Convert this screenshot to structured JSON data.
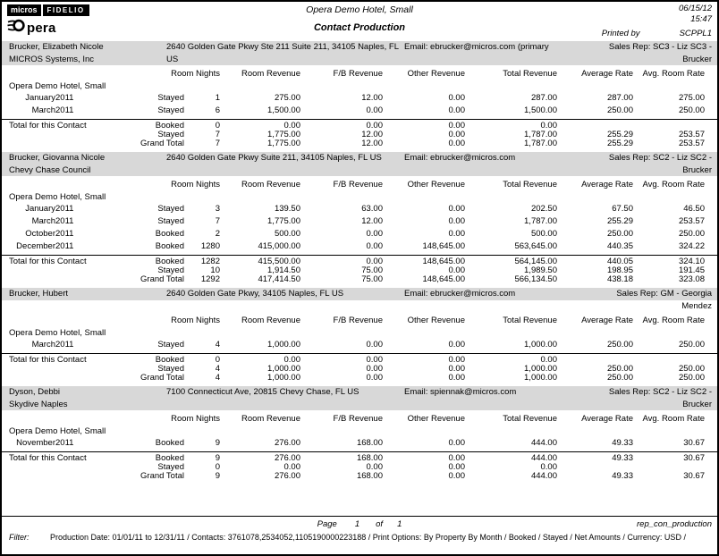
{
  "colors": {
    "band": "#d8d8d8",
    "text": "#000000",
    "page_bg": "#ffffff"
  },
  "header": {
    "logo_micros": "micros",
    "logo_fidelio": "FIDELIO",
    "logo_opera_text": "pera",
    "hotel_title": "Opera Demo Hotel, Small",
    "report_title": "Contact Production",
    "date": "06/15/12",
    "time": "15:47",
    "printed_by_label": "Printed by",
    "printed_by_value": "SCPPL1"
  },
  "table": {
    "columns": [
      "Room Nights",
      "Room Revenue",
      "F/B Revenue",
      "Other Revenue",
      "Total Revenue",
      "Average Rate",
      "Avg. Room Rate"
    ],
    "property_label": "Opera Demo Hotel, Small",
    "total_label": "Total for this Contact"
  },
  "contacts": [
    {
      "name": "Brucker, Elizabeth Nicole",
      "address": "2640 Golden Gate Pkwy Ste 211 Suite 211, 34105 Naples, FL US",
      "email": "Email: ebrucker@micros.com (primary",
      "sales_rep": "Sales Rep: SC3 - Liz SC3 - Brucker",
      "company": "MICROS Systems, Inc",
      "rows": [
        {
          "month": "January",
          "year": "2011",
          "status": "Stayed",
          "nights": "1",
          "room": "275.00",
          "fb": "12.00",
          "other": "0.00",
          "total": "287.00",
          "avg_rate": "287.00",
          "avg_room_rate": "275.00"
        },
        {
          "month": "March",
          "year": "2011",
          "status": "Stayed",
          "nights": "6",
          "room": "1,500.00",
          "fb": "0.00",
          "other": "0.00",
          "total": "1,500.00",
          "avg_rate": "250.00",
          "avg_room_rate": "250.00"
        }
      ],
      "totals": [
        {
          "status": "Booked",
          "nights": "0",
          "room": "0.00",
          "fb": "0.00",
          "other": "0.00",
          "total": "0.00",
          "avg_rate": "",
          "avg_room_rate": ""
        },
        {
          "status": "Stayed",
          "nights": "7",
          "room": "1,775.00",
          "fb": "12.00",
          "other": "0.00",
          "total": "1,787.00",
          "avg_rate": "255.29",
          "avg_room_rate": "253.57"
        },
        {
          "status": "Grand Total",
          "nights": "7",
          "room": "1,775.00",
          "fb": "12.00",
          "other": "0.00",
          "total": "1,787.00",
          "avg_rate": "255.29",
          "avg_room_rate": "253.57"
        }
      ]
    },
    {
      "name": "Brucker, Giovanna Nicole",
      "address": "2640 Golden Gate Pkwy Suite 211, 34105 Naples, FL US",
      "email": "Email: ebrucker@micros.com",
      "sales_rep": "Sales Rep: SC2 - Liz SC2 - Brucker",
      "company": "Chevy Chase Council",
      "rows": [
        {
          "month": "January",
          "year": "2011",
          "status": "Stayed",
          "nights": "3",
          "room": "139.50",
          "fb": "63.00",
          "other": "0.00",
          "total": "202.50",
          "avg_rate": "67.50",
          "avg_room_rate": "46.50"
        },
        {
          "month": "March",
          "year": "2011",
          "status": "Stayed",
          "nights": "7",
          "room": "1,775.00",
          "fb": "12.00",
          "other": "0.00",
          "total": "1,787.00",
          "avg_rate": "255.29",
          "avg_room_rate": "253.57"
        },
        {
          "month": "October",
          "year": "2011",
          "status": "Booked",
          "nights": "2",
          "room": "500.00",
          "fb": "0.00",
          "other": "0.00",
          "total": "500.00",
          "avg_rate": "250.00",
          "avg_room_rate": "250.00"
        },
        {
          "month": "December",
          "year": "2011",
          "status": "Booked",
          "nights": "1280",
          "room": "415,000.00",
          "fb": "0.00",
          "other": "148,645.00",
          "total": "563,645.00",
          "avg_rate": "440.35",
          "avg_room_rate": "324.22"
        }
      ],
      "totals": [
        {
          "status": "Booked",
          "nights": "1282",
          "room": "415,500.00",
          "fb": "0.00",
          "other": "148,645.00",
          "total": "564,145.00",
          "avg_rate": "440.05",
          "avg_room_rate": "324.10"
        },
        {
          "status": "Stayed",
          "nights": "10",
          "room": "1,914.50",
          "fb": "75.00",
          "other": "0.00",
          "total": "1,989.50",
          "avg_rate": "198.95",
          "avg_room_rate": "191.45"
        },
        {
          "status": "Grand Total",
          "nights": "1292",
          "room": "417,414.50",
          "fb": "75.00",
          "other": "148,645.00",
          "total": "566,134.50",
          "avg_rate": "438.18",
          "avg_room_rate": "323.08"
        }
      ]
    },
    {
      "name": "Brucker, Hubert",
      "address": "2640 Golden Gate Pkwy, 34105 Naples, FL US",
      "email": "Email: ebrucker@micros.com",
      "sales_rep": "Sales Rep: GM - Georgia Mendez",
      "company": "",
      "rows": [
        {
          "month": "March",
          "year": "2011",
          "status": "Stayed",
          "nights": "4",
          "room": "1,000.00",
          "fb": "0.00",
          "other": "0.00",
          "total": "1,000.00",
          "avg_rate": "250.00",
          "avg_room_rate": "250.00"
        }
      ],
      "totals": [
        {
          "status": "Booked",
          "nights": "0",
          "room": "0.00",
          "fb": "0.00",
          "other": "0.00",
          "total": "0.00",
          "avg_rate": "",
          "avg_room_rate": ""
        },
        {
          "status": "Stayed",
          "nights": "4",
          "room": "1,000.00",
          "fb": "0.00",
          "other": "0.00",
          "total": "1,000.00",
          "avg_rate": "250.00",
          "avg_room_rate": "250.00"
        },
        {
          "status": "Grand Total",
          "nights": "4",
          "room": "1,000.00",
          "fb": "0.00",
          "other": "0.00",
          "total": "1,000.00",
          "avg_rate": "250.00",
          "avg_room_rate": "250.00"
        }
      ]
    },
    {
      "name": "Dyson, Debbi",
      "address": "7100 Connecticut Ave, 20815 Chevy Chase, FL US",
      "email": "Email: spiennak@micros.com",
      "sales_rep": "Sales Rep: SC2 - Liz SC2 - Brucker",
      "company": "Skydive Naples",
      "rows": [
        {
          "month": "November",
          "year": "2011",
          "status": "Booked",
          "nights": "9",
          "room": "276.00",
          "fb": "168.00",
          "other": "0.00",
          "total": "444.00",
          "avg_rate": "49.33",
          "avg_room_rate": "30.67"
        }
      ],
      "totals": [
        {
          "status": "Booked",
          "nights": "9",
          "room": "276.00",
          "fb": "168.00",
          "other": "0.00",
          "total": "444.00",
          "avg_rate": "49.33",
          "avg_room_rate": "30.67"
        },
        {
          "status": "Stayed",
          "nights": "0",
          "room": "0.00",
          "fb": "0.00",
          "other": "0.00",
          "total": "0.00",
          "avg_rate": "",
          "avg_room_rate": ""
        },
        {
          "status": "Grand Total",
          "nights": "9",
          "room": "276.00",
          "fb": "168.00",
          "other": "0.00",
          "total": "444.00",
          "avg_rate": "49.33",
          "avg_room_rate": "30.67"
        }
      ]
    }
  ],
  "footer": {
    "page_label": "Page",
    "page_number": "1",
    "of_label": "of",
    "page_total": "1",
    "report_id": "rep_con_production",
    "filter_label": "Filter:",
    "filter_text": "Production Date: 01/01/11 to 12/31/11 / Contacts: 3761078,2534052,1105190000223188 / Print Options: By Property By Month / Booked / Stayed / Net Amounts / Currency: USD /"
  }
}
